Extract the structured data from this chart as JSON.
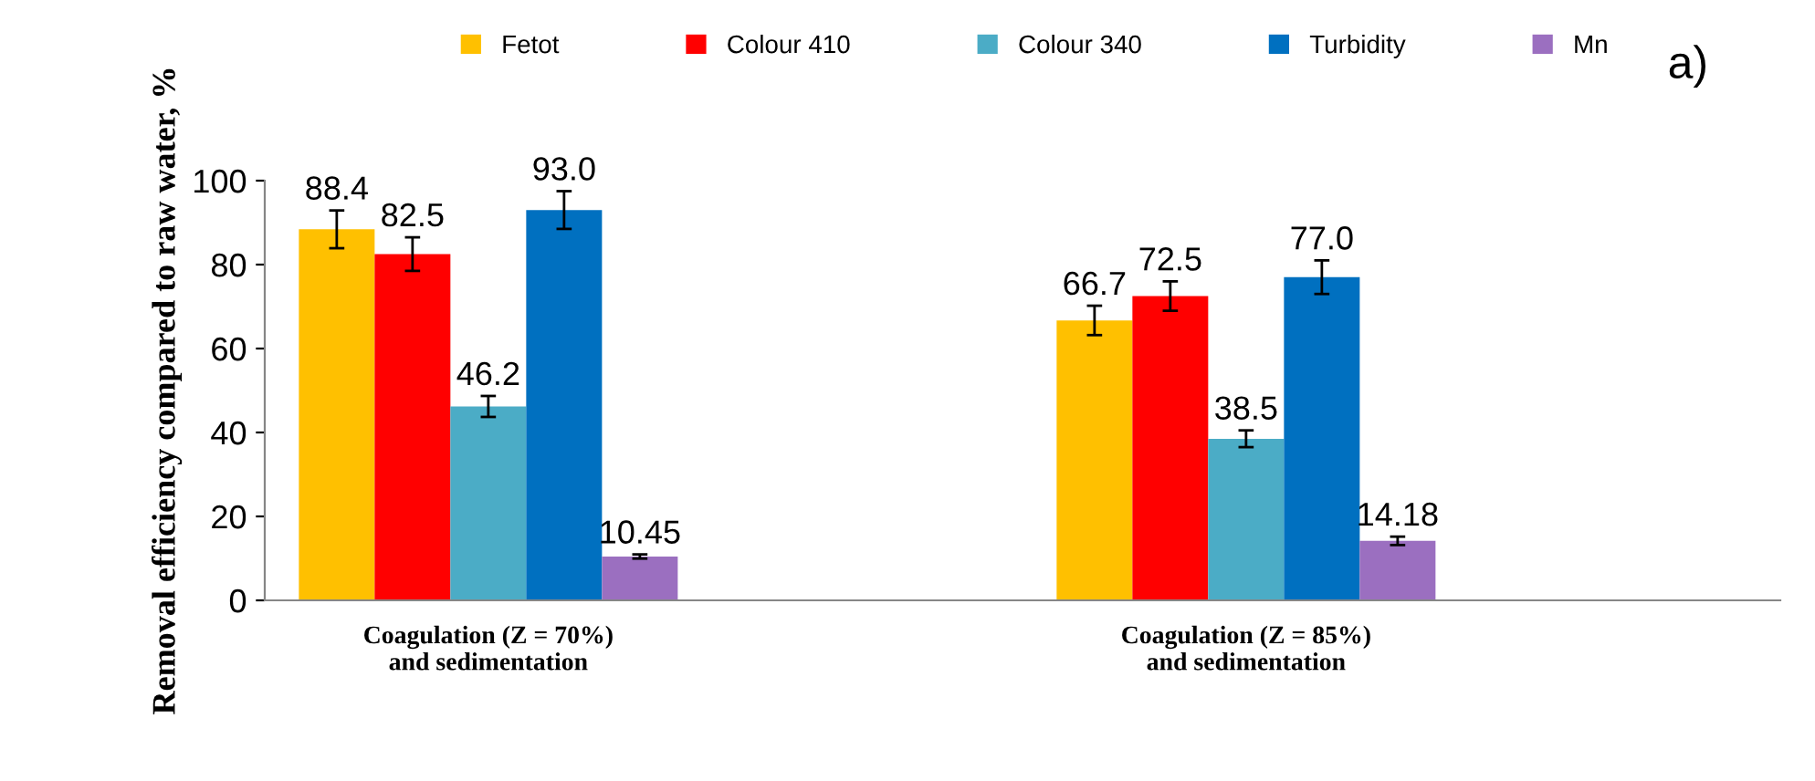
{
  "chart_data": {
    "type": "bar",
    "ylabel": "Removal efficiency compared to raw water, %",
    "categories": [
      "Coagulation (Z = 70%)\nand sedimentation",
      "Coagulation (Z = 85%)\nand sedimentation"
    ],
    "series": [
      {
        "name": "Fetot",
        "color": "#ffc000",
        "values": [
          88.4,
          66.7
        ],
        "errors": [
          4.5,
          3.5
        ]
      },
      {
        "name": "Colour 410",
        "color": "#ff0000",
        "values": [
          82.5,
          72.5
        ],
        "errors": [
          4,
          3.5
        ]
      },
      {
        "name": "Colour 340",
        "color": "#4bacc6",
        "values": [
          46.2,
          38.5
        ],
        "errors": [
          2.5,
          2
        ]
      },
      {
        "name": "Turbidity",
        "color": "#0070c0",
        "values": [
          93.0,
          77.0
        ],
        "errors": [
          4.5,
          4
        ]
      },
      {
        "name": "Mn",
        "color": "#9b6fc0",
        "values": [
          10.45,
          14.18
        ],
        "errors": [
          0.5,
          1
        ]
      }
    ],
    "value_labels": [
      [
        "88.4",
        "66.7"
      ],
      [
        "82.5",
        "72.5"
      ],
      [
        "46.2",
        "38.5"
      ],
      [
        "93.0",
        "77.0"
      ],
      [
        "10.45",
        "14.18"
      ]
    ],
    "ylim": [
      0,
      100
    ],
    "yticks": [
      0,
      20,
      40,
      60,
      80,
      100
    ],
    "grid": false,
    "legend": "top",
    "annotations": [
      "a)"
    ]
  }
}
